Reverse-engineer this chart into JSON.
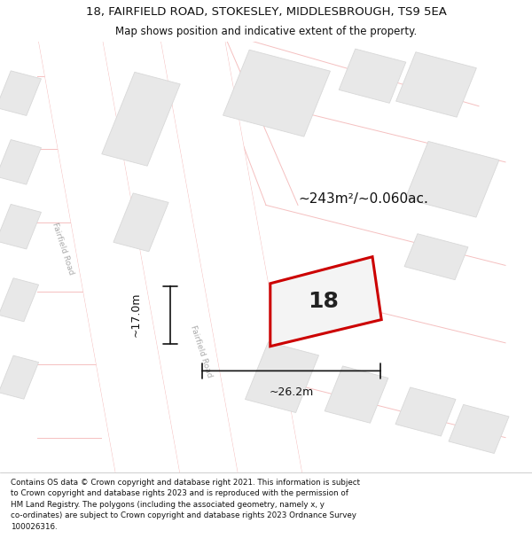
{
  "title_line1": "18, FAIRFIELD ROAD, STOKESLEY, MIDDLESBROUGH, TS9 5EA",
  "title_line2": "Map shows position and indicative extent of the property.",
  "area_label": "~243m²/~0.060ac.",
  "number_label": "18",
  "dim_width": "~26.2m",
  "dim_height": "~17.0m",
  "road_label1": "Fairfield Road",
  "road_label2": "Fairfield Road",
  "map_bg": "#f8f8f8",
  "road_fill": "#ffffff",
  "road_edge": "#f0b0b0",
  "block_fill": "#e8e8e8",
  "block_edge": "#d8d8d8",
  "prop_edge": "#cc0000",
  "prop_fill": "#f4f4f4",
  "dim_color": "#111111",
  "road_line_color": "#f5c0c0",
  "title_color": "#111111",
  "footer_color": "#111111",
  "footer_lines": [
    "Contains OS data © Crown copyright and database right 2021. This information is subject",
    "to Crown copyright and database rights 2023 and is reproduced with the permission of",
    "HM Land Registry. The polygons (including the associated geometry, namely x, y",
    "co-ordinates) are subject to Crown copyright and database rights 2023 Ordnance Survey",
    "100026316."
  ]
}
